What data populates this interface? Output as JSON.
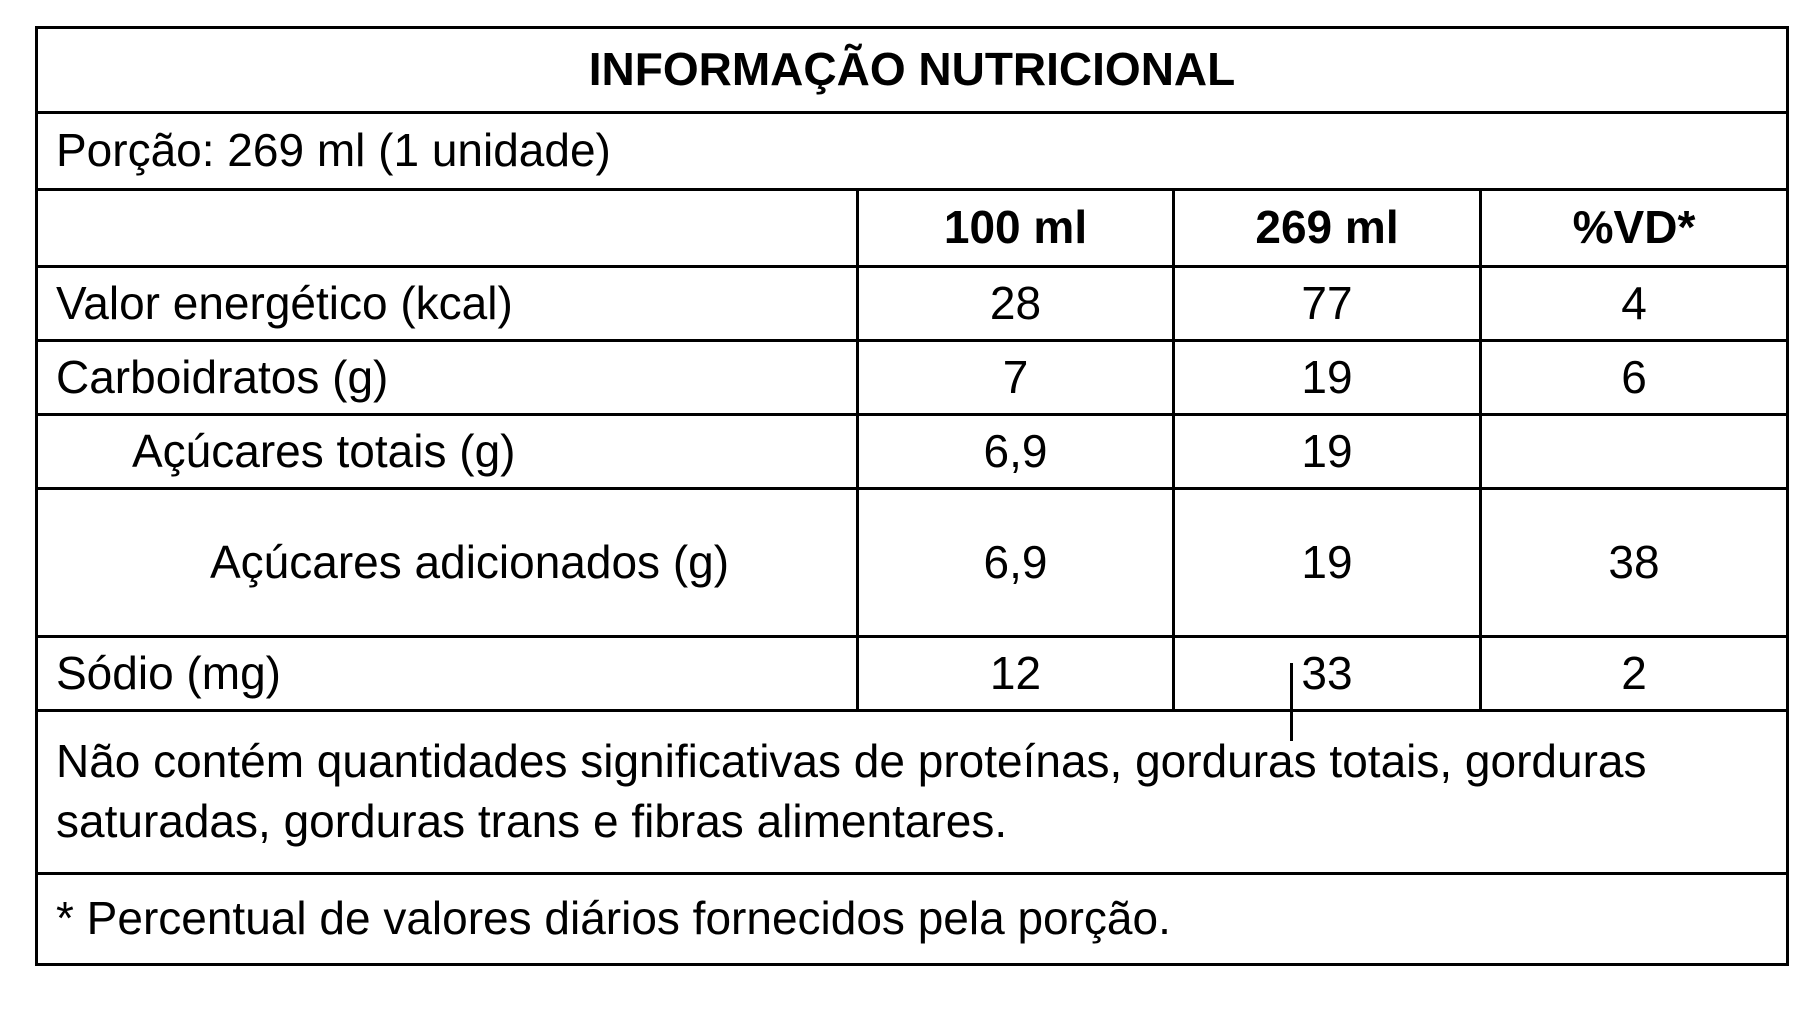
{
  "title": "INFORMAÇÃO NUTRICIONAL",
  "portion": "Porção: 269 ml (1 unidade)",
  "columns": [
    "100 ml",
    "269 ml",
    "%VD*"
  ],
  "rows": [
    {
      "label": "Valor energético (kcal)",
      "values": [
        "28",
        "77",
        "4"
      ]
    },
    {
      "label": "Carboidratos (g)",
      "values": [
        "7",
        "19",
        "6"
      ]
    },
    {
      "label": "Açúcares totais (g)",
      "values": [
        "6,9",
        "19",
        null
      ]
    },
    {
      "label": "Açúcares adicionados (g)",
      "values": [
        "6,9",
        "19",
        "38"
      ]
    },
    {
      "label": "Sódio (mg)",
      "values": [
        "12",
        "33",
        "2"
      ]
    }
  ],
  "notes": [
    "Não contém quantidades significativas de proteínas, gorduras totais, gorduras saturadas, gorduras trans e fibras alimentares.",
    "* Percentual de valores diários fornecidos pela porção."
  ]
}
